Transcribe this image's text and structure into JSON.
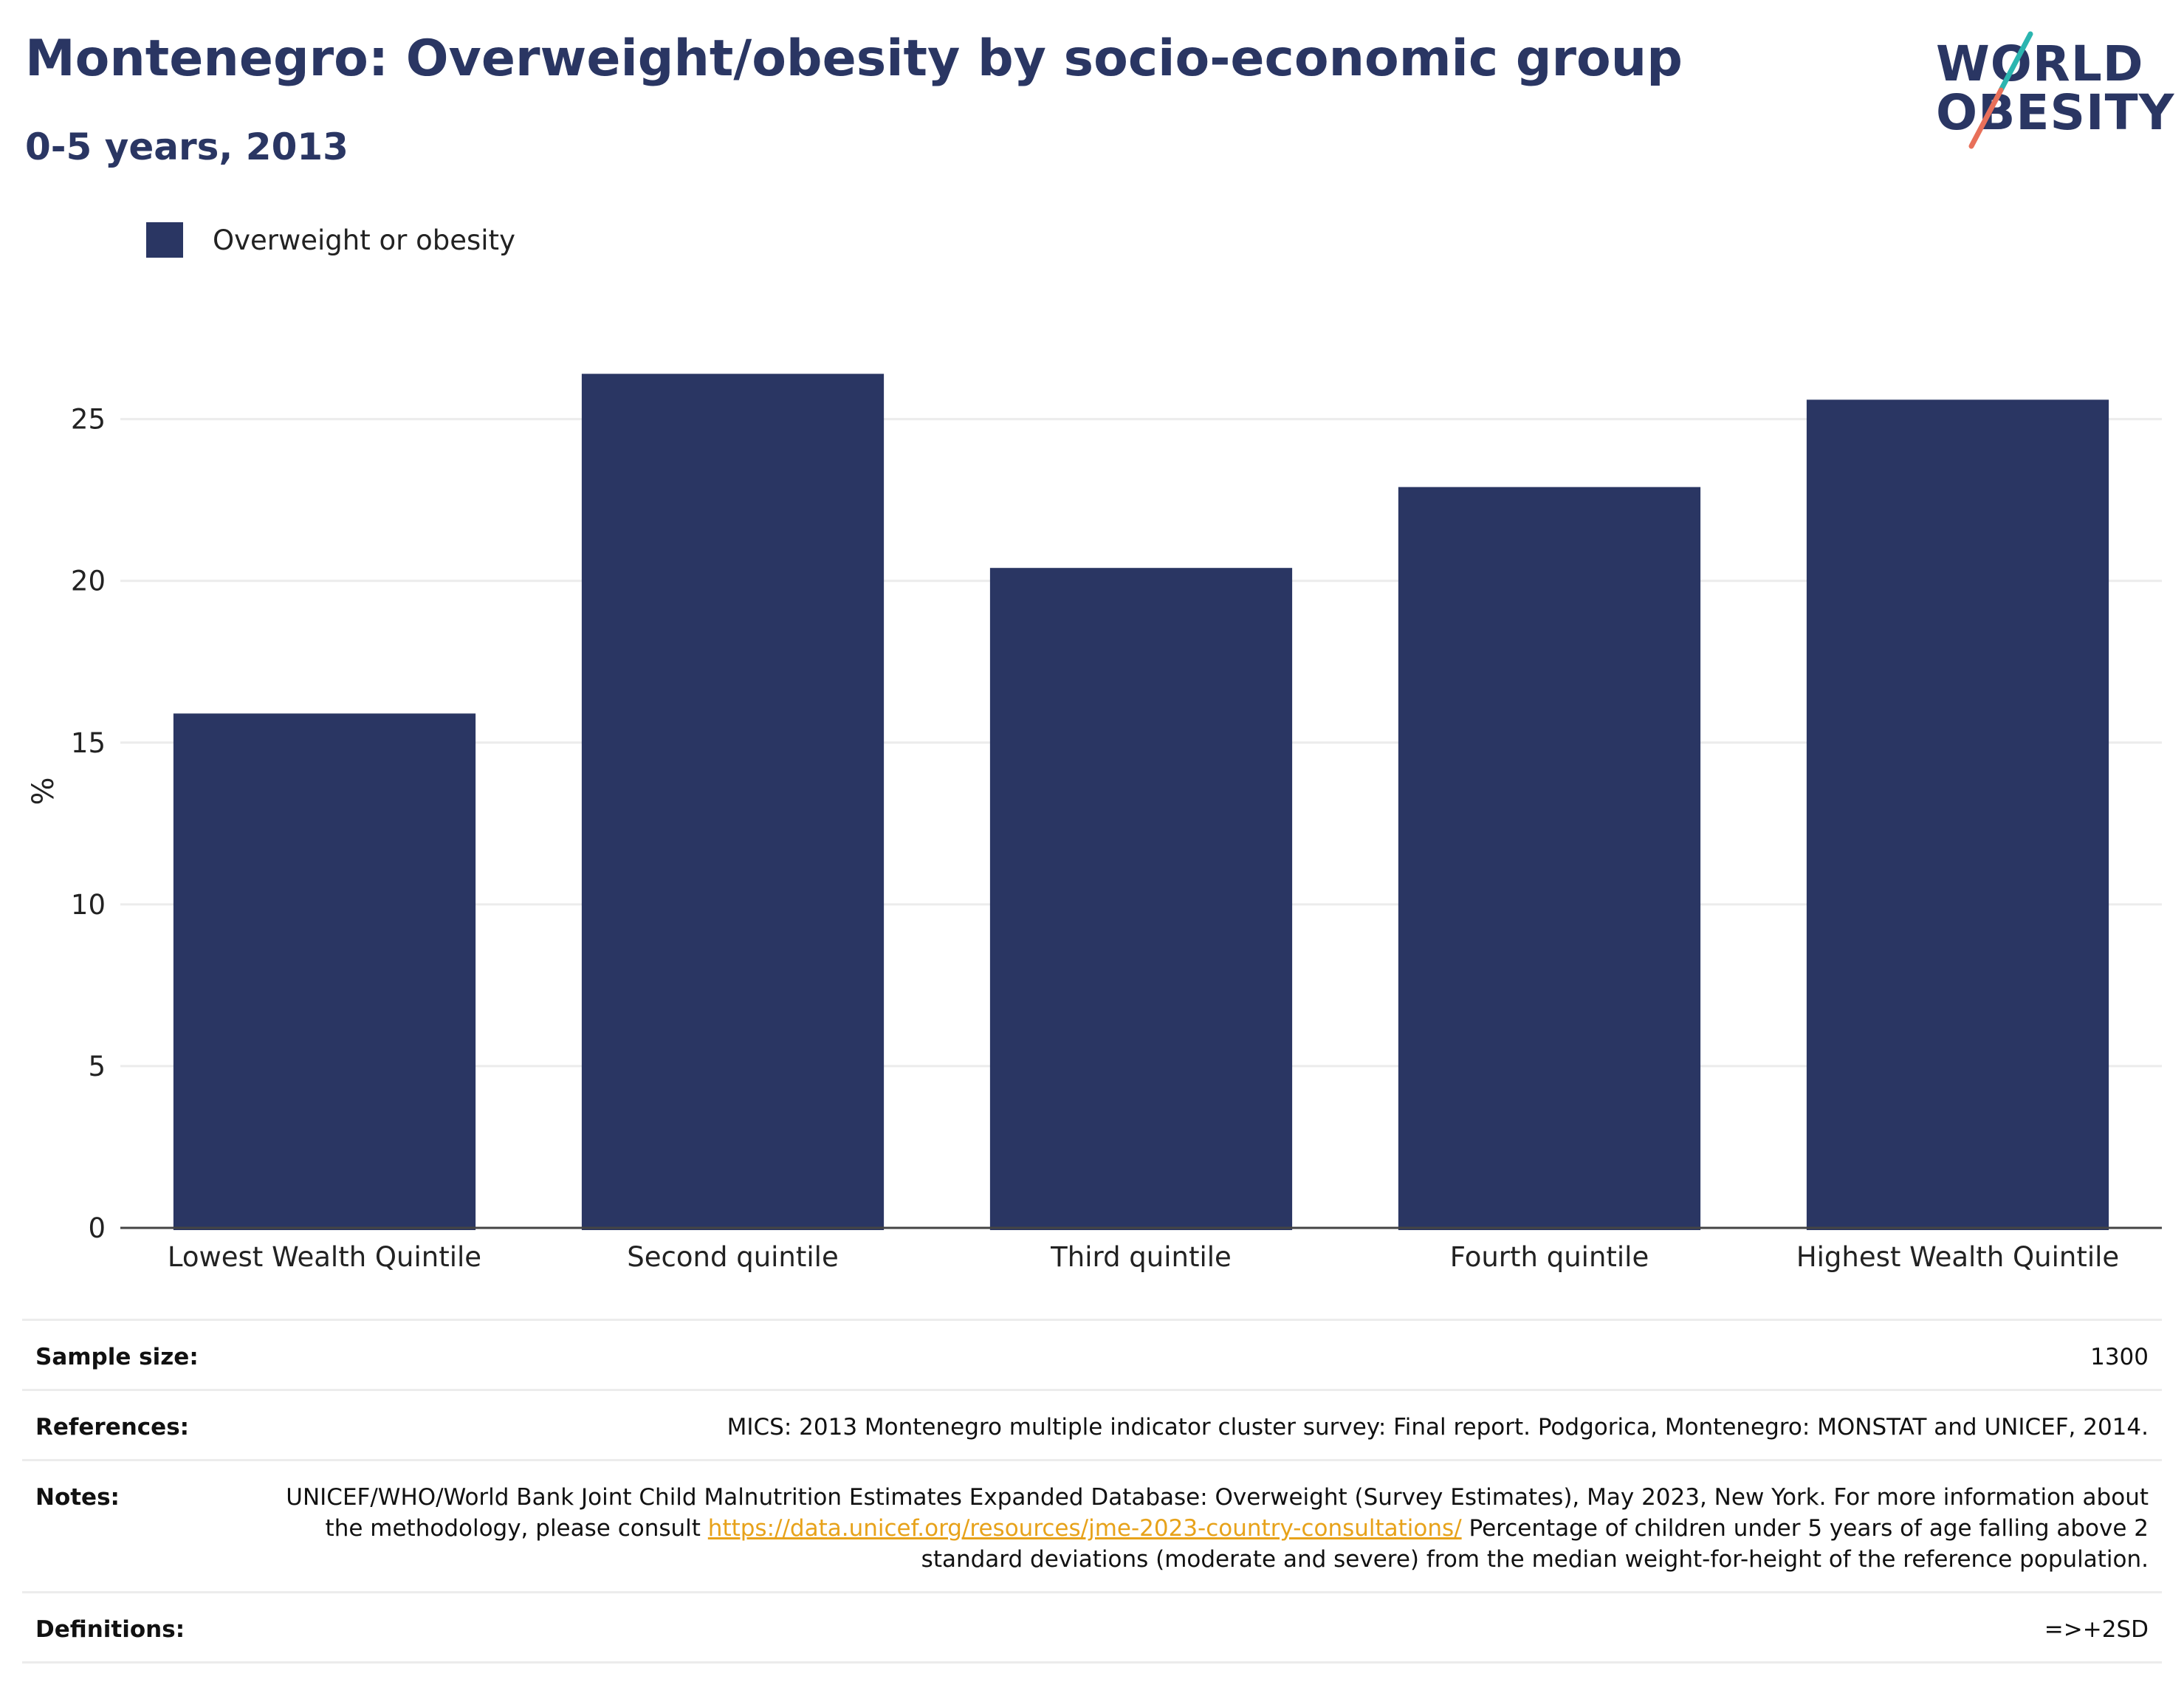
{
  "header": {
    "title": "Montenegro: Overweight/obesity by socio-economic group",
    "subtitle": "0-5 years, 2013"
  },
  "logo": {
    "line1": "WORLD",
    "line2": "OBESITY",
    "slash_top_color": "#2bb5b0",
    "slash_bottom_color": "#e8705a"
  },
  "colors": {
    "bar": "#2a3663",
    "text": "#2a3663",
    "grid": "#ececec",
    "link": "#e7a21a"
  },
  "chart_data": {
    "type": "bar",
    "categories": [
      "Lowest Wealth Quintile",
      "Second quintile",
      "Third quintile",
      "Fourth quintile",
      "Highest Wealth Quintile"
    ],
    "series": [
      {
        "name": "Overweight or obesity",
        "values": [
          15.9,
          26.4,
          20.4,
          22.9,
          25.6
        ]
      }
    ],
    "xlabel": "",
    "ylabel": "%",
    "ylim": [
      0,
      27
    ],
    "yticks": [
      0,
      5,
      10,
      15,
      20,
      25
    ],
    "grid": true,
    "legend_position": "top-left"
  },
  "table": [
    {
      "key": "Sample size:",
      "value": "1300"
    },
    {
      "key": "References:",
      "value": "MICS: 2013 Montenegro multiple indicator cluster survey: Final report. Podgorica, Montenegro: MONSTAT and UNICEF, 2014."
    },
    {
      "key": "Notes:",
      "value_before": "UNICEF/WHO/World Bank Joint Child Malnutrition Estimates Expanded Database: Overweight (Survey Estimates), May 2023, New York. For more information about the methodology, please consult ",
      "link": "https://data.unicef.org/resources/jme-2023-country-consultations/",
      "value_after": " Percentage of children under 5 years of age falling above 2 standard deviations (moderate and severe) from the median weight-for-height of the reference population."
    },
    {
      "key": "Definitions:",
      "value": "=>+2SD"
    }
  ]
}
